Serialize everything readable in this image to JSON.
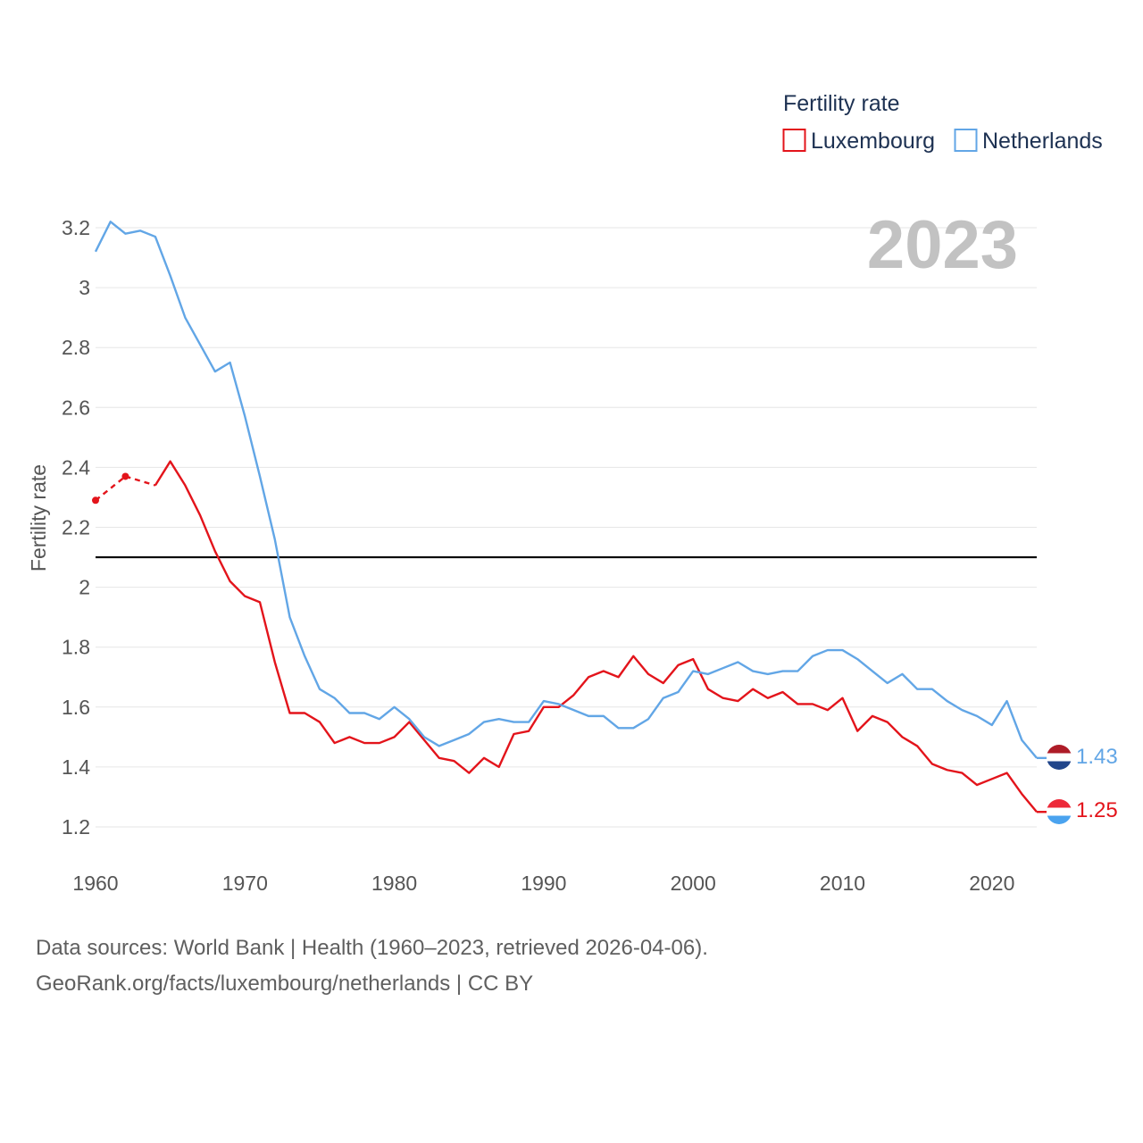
{
  "chart_data": {
    "type": "line",
    "title": "Fertility rate",
    "ylabel": "Fertility rate",
    "xlabel": "",
    "year_marker": "2023",
    "xlim": [
      1960,
      2023
    ],
    "ylim": [
      1.1,
      3.25
    ],
    "x_ticks": [
      1960,
      1970,
      1980,
      1990,
      2000,
      2010,
      2020
    ],
    "y_ticks": [
      1.2,
      1.4,
      1.6,
      1.8,
      2,
      2.2,
      2.4,
      2.6,
      2.8,
      3,
      3.2
    ],
    "reference_line": 2.1,
    "x": [
      1960,
      1961,
      1962,
      1963,
      1964,
      1965,
      1966,
      1967,
      1968,
      1969,
      1970,
      1971,
      1972,
      1973,
      1974,
      1975,
      1976,
      1977,
      1978,
      1979,
      1980,
      1981,
      1982,
      1983,
      1984,
      1985,
      1986,
      1987,
      1988,
      1989,
      1990,
      1991,
      1992,
      1993,
      1994,
      1995,
      1996,
      1997,
      1998,
      1999,
      2000,
      2001,
      2002,
      2003,
      2004,
      2005,
      2006,
      2007,
      2008,
      2009,
      2010,
      2011,
      2012,
      2013,
      2014,
      2015,
      2016,
      2017,
      2018,
      2019,
      2020,
      2021,
      2022,
      2023
    ],
    "series": [
      {
        "name": "Luxembourg",
        "color": "#e3141b",
        "end_label": "1.25",
        "values": [
          2.29,
          null,
          2.37,
          null,
          2.34,
          2.42,
          2.34,
          2.24,
          2.12,
          2.02,
          1.97,
          1.95,
          1.75,
          1.58,
          1.58,
          1.55,
          1.48,
          1.5,
          1.48,
          1.48,
          1.5,
          1.55,
          1.49,
          1.43,
          1.42,
          1.38,
          1.43,
          1.4,
          1.51,
          1.52,
          1.6,
          1.6,
          1.64,
          1.7,
          1.72,
          1.7,
          1.77,
          1.71,
          1.68,
          1.74,
          1.76,
          1.66,
          1.63,
          1.62,
          1.66,
          1.63,
          1.65,
          1.61,
          1.61,
          1.59,
          1.63,
          1.52,
          1.57,
          1.55,
          1.5,
          1.47,
          1.41,
          1.39,
          1.38,
          1.34,
          1.36,
          1.38,
          1.31,
          1.25
        ]
      },
      {
        "name": "Netherlands",
        "color": "#62a6e6",
        "end_label": "1.43",
        "values": [
          3.12,
          3.22,
          3.18,
          3.19,
          3.17,
          3.04,
          2.9,
          2.81,
          2.72,
          2.75,
          2.57,
          2.37,
          2.16,
          1.9,
          1.77,
          1.66,
          1.63,
          1.58,
          1.58,
          1.56,
          1.6,
          1.56,
          1.5,
          1.47,
          1.49,
          1.51,
          1.55,
          1.56,
          1.55,
          1.55,
          1.62,
          1.61,
          1.59,
          1.57,
          1.57,
          1.53,
          1.53,
          1.56,
          1.63,
          1.65,
          1.72,
          1.71,
          1.73,
          1.75,
          1.72,
          1.71,
          1.72,
          1.72,
          1.77,
          1.79,
          1.79,
          1.76,
          1.72,
          1.68,
          1.71,
          1.66,
          1.66,
          1.62,
          1.59,
          1.57,
          1.54,
          1.62,
          1.49,
          1.43
        ]
      }
    ]
  },
  "sources": {
    "line1": "Data sources: World Bank | Health (1960–2023, retrieved 2026-04-06).",
    "line2": "GeoRank.org/facts/luxembourg/netherlands | CC BY"
  }
}
